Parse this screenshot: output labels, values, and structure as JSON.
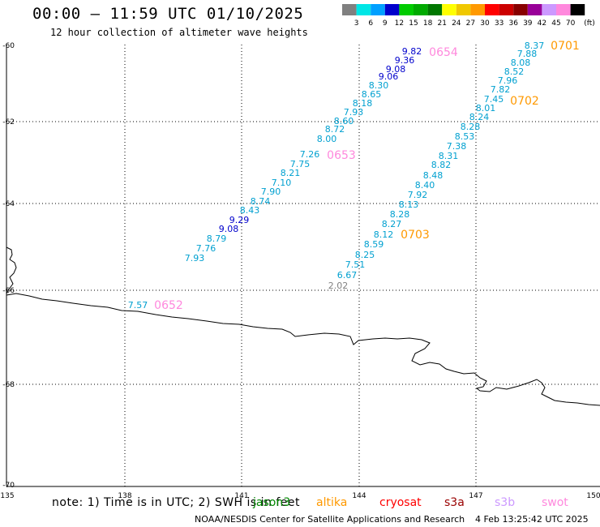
{
  "header": {
    "title": "00:00 – 11:59 UTC 01/10/2025",
    "subtitle": "12 hour collection of altimeter wave heights"
  },
  "legend": {
    "units": "(ft)",
    "bins": [
      {
        "label": "3",
        "color": "#808080"
      },
      {
        "label": "6",
        "color": "#00e6e6"
      },
      {
        "label": "9",
        "color": "#00a0ff"
      },
      {
        "label": "12",
        "color": "#0000cc"
      },
      {
        "label": "15",
        "color": "#00cc00"
      },
      {
        "label": "18",
        "color": "#00aa00"
      },
      {
        "label": "21",
        "color": "#007700"
      },
      {
        "label": "24",
        "color": "#ffff00"
      },
      {
        "label": "27",
        "color": "#f0c800"
      },
      {
        "label": "30",
        "color": "#ff9900"
      },
      {
        "label": "33",
        "color": "#ff0000"
      },
      {
        "label": "36",
        "color": "#cc0000"
      },
      {
        "label": "39",
        "color": "#880000"
      },
      {
        "label": "42",
        "color": "#990099"
      },
      {
        "label": "45",
        "color": "#cc99ff"
      },
      {
        "label": "70",
        "color": "#ff88dd"
      },
      {
        "label": "",
        "color": "#000000"
      }
    ]
  },
  "axes": {
    "lon_labels": [
      "135",
      "138",
      "141",
      "144",
      "147",
      "150"
    ],
    "lat_labels": [
      "-60",
      "-62",
      "-64",
      "-66",
      "-68",
      "-70"
    ]
  },
  "passes": [
    {
      "label": "0652",
      "color": "#ff88dd"
    },
    {
      "label": "0653",
      "color": "#ff88dd"
    },
    {
      "label": "0654",
      "color": "#ff88dd"
    },
    {
      "label": "0701",
      "color": "#ff9900"
    },
    {
      "label": "0702",
      "color": "#ff9900"
    },
    {
      "label": "0703",
      "color": "#ff9900"
    }
  ],
  "wave_heights": {
    "track_0652": [
      "7.57"
    ],
    "track_0653": [
      "7.93",
      "7.76",
      "8.79",
      "9.08",
      "9.29",
      "8.43",
      "8.74",
      "7.90",
      "7.10",
      "8.21",
      "7.75",
      "7.26",
      "8.00",
      "8.72",
      "8.60",
      "7.93",
      "8.18",
      "8.65",
      "8.30",
      "9.06",
      "9.08",
      "9.36",
      "9.82"
    ],
    "track_0703": [
      "2.02",
      "6.67",
      "7.51",
      "8.25",
      "8.59",
      "8.12",
      "8.27",
      "8.28",
      "8.13",
      "7.92",
      "8.40",
      "8.48",
      "8.82",
      "8.31",
      "7.38",
      "8.53",
      "8.28",
      "8.24",
      "8.01",
      "7.45",
      "7.82",
      "7.96",
      "8.52",
      "8.08",
      "7.88",
      "8.37"
    ]
  },
  "footer": {
    "note": "note: 1) Time is in UTC; 2) SWH is in feet",
    "satellites": [
      {
        "name": "jason3",
        "color": "#008800"
      },
      {
        "name": "altika",
        "color": "#ff9900"
      },
      {
        "name": "cryosat",
        "color": "#ff0000"
      },
      {
        "name": "s3a",
        "color": "#990000"
      },
      {
        "name": "s3b",
        "color": "#cc99ff"
      },
      {
        "name": "swot",
        "color": "#ff88dd"
      }
    ],
    "credit": "NOAA/NESDIS Center for Satellite Applications and Research",
    "timestamp": "4 Feb 13:25:42 UTC 2025"
  }
}
